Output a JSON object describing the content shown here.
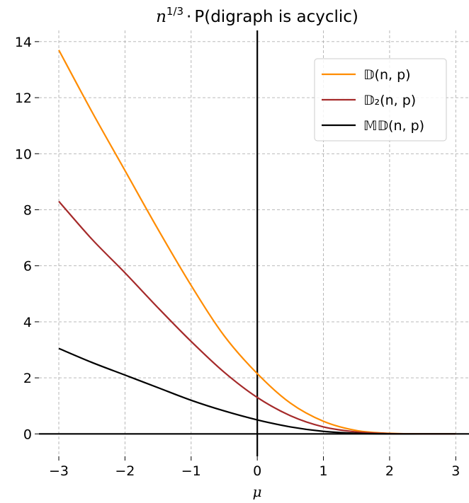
{
  "chart_data": {
    "type": "line",
    "title_parts": {
      "var": "n",
      "exp": "1/3",
      "dot": "·",
      "text": "P(digraph is acyclic)"
    },
    "xlabel": "μ",
    "ylabel": "",
    "xlim": [
      -3.3,
      3.2
    ],
    "ylim": [
      -0.8,
      14.4
    ],
    "xticks": [
      -3,
      -2,
      -1,
      0,
      1,
      2,
      3
    ],
    "xtick_labels": [
      "−3",
      "−2",
      "−1",
      "0",
      "1",
      "2",
      "3"
    ],
    "yticks": [
      0,
      2,
      4,
      6,
      8,
      10,
      12,
      14
    ],
    "ytick_labels": [
      "0",
      "2",
      "4",
      "6",
      "8",
      "10",
      "12",
      "14"
    ],
    "grid": true,
    "legend_position": "top-right",
    "reference_lines": {
      "horizontal_y": 0,
      "vertical_x": 0
    },
    "x": [
      -3,
      -2.5,
      -2,
      -1.5,
      -1,
      -0.5,
      0,
      0.5,
      1,
      1.5,
      2,
      2.5,
      3
    ],
    "series": [
      {
        "name": "𝔻(n, p)",
        "color": "#ff8c00",
        "values": [
          13.7,
          11.5,
          9.4,
          7.3,
          5.3,
          3.5,
          2.15,
          1.1,
          0.45,
          0.12,
          0.02,
          0.0,
          0.0
        ]
      },
      {
        "name": "𝔻₂(n, p)",
        "color": "#a52a2a",
        "values": [
          8.3,
          6.95,
          5.75,
          4.5,
          3.3,
          2.2,
          1.3,
          0.65,
          0.25,
          0.07,
          0.01,
          0.0,
          0.0
        ]
      },
      {
        "name": "𝕄𝔻(n, p)",
        "color": "#000000",
        "values": [
          3.05,
          2.55,
          2.1,
          1.65,
          1.2,
          0.82,
          0.5,
          0.25,
          0.09,
          0.02,
          0.0,
          0.0,
          0.0
        ]
      }
    ]
  }
}
